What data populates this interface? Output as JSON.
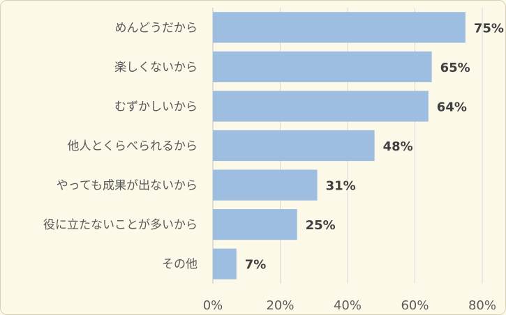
{
  "chart_data": {
    "type": "bar",
    "orientation": "horizontal",
    "categories": [
      "めんどうだから",
      "楽しくないから",
      "むずかしいから",
      "他人とくらべられるから",
      "やっても成果が出ないから",
      "役に立たないことが多いから",
      "その他"
    ],
    "values": [
      75,
      65,
      64,
      48,
      31,
      25,
      7
    ],
    "value_labels": [
      "75%",
      "65%",
      "64%",
      "48%",
      "31%",
      "25%",
      "7%"
    ],
    "xticks": [
      "0%",
      "20%",
      "40%",
      "60%",
      "80%"
    ],
    "xlim": [
      0,
      80
    ],
    "grid": true,
    "legend": "none",
    "colors": {
      "bar": "#9dbde1",
      "background": "#fdf9e9",
      "grid": "#d9d9d9",
      "label": "#595959",
      "value": "#404040"
    }
  }
}
